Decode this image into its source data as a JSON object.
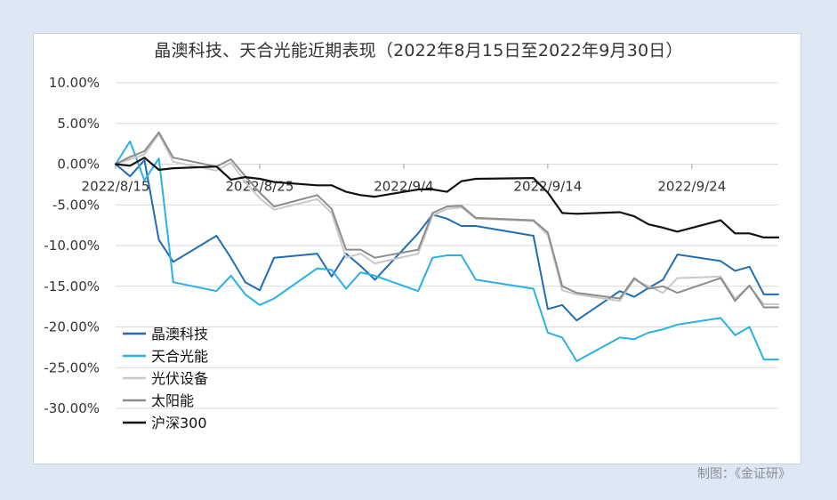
{
  "credit": "制图：《金证研》",
  "chart_data": {
    "type": "line",
    "title": "晶澳科技、天合光能近期表现（2022年8月15日至2022年9月30日）",
    "ylim": [
      -30,
      10
    ],
    "yticks": [
      10,
      5,
      0,
      -5,
      -10,
      -15,
      -20,
      -25,
      -30
    ],
    "ytick_labels": [
      "10.00%",
      "5.00%",
      "0.00%",
      "-5.00%",
      "-10.00%",
      "-15.00%",
      "-20.00%",
      "-25.00%",
      "-30.00%"
    ],
    "x": [
      "2022-08-15",
      "2022-08-16",
      "2022-08-17",
      "2022-08-18",
      "2022-08-19",
      "2022-08-22",
      "2022-08-23",
      "2022-08-24",
      "2022-08-25",
      "2022-08-26",
      "2022-08-29",
      "2022-08-30",
      "2022-08-31",
      "2022-09-01",
      "2022-09-02",
      "2022-09-05",
      "2022-09-06",
      "2022-09-07",
      "2022-09-08",
      "2022-09-09",
      "2022-09-13",
      "2022-09-14",
      "2022-09-15",
      "2022-09-16",
      "2022-09-19",
      "2022-09-20",
      "2022-09-21",
      "2022-09-22",
      "2022-09-23",
      "2022-09-26",
      "2022-09-27",
      "2022-09-28",
      "2022-09-29",
      "2022-09-30"
    ],
    "xtick_labels": [
      {
        "date": "2022-08-15",
        "label": "2022/8/15"
      },
      {
        "date": "2022-08-25",
        "label": "2022/8/25"
      },
      {
        "date": "2022-09-04",
        "label": "2022/9/4"
      },
      {
        "date": "2022-09-14",
        "label": "2022/9/14"
      },
      {
        "date": "2022-09-24",
        "label": "2022/9/24"
      }
    ],
    "grid": true,
    "legend_position": "bottom-left",
    "series": [
      {
        "name": "晶澳科技",
        "color": "#1f6db5",
        "values": [
          0,
          -1.5,
          0.5,
          -9.3,
          -12,
          -8.8,
          -11.5,
          -14.5,
          -15.5,
          -11.5,
          -11,
          -13.8,
          -11,
          -12.5,
          -14.2,
          -8.5,
          -6.2,
          -6.7,
          -7.6,
          -7.6,
          -8.8,
          -17.8,
          -17.3,
          -19.2,
          -15.6,
          -16.3,
          -15.2,
          -14.2,
          -11.1,
          -11.9,
          -13.1,
          -12.6,
          -16.0,
          -16.0
        ]
      },
      {
        "name": "天合光能",
        "color": "#29b1e6",
        "values": [
          0,
          2.8,
          -2.0,
          0.7,
          -14.5,
          -15.6,
          -13.7,
          -16.0,
          -17.3,
          -16.5,
          -12.8,
          -13.0,
          -15.3,
          -13.3,
          -13.7,
          -15.6,
          -11.5,
          -11.2,
          -11.2,
          -14.2,
          -15.3,
          -20.7,
          -21.3,
          -24.2,
          -21.3,
          -21.5,
          -20.7,
          -20.3,
          -19.7,
          -18.9,
          -21.0,
          -20.0,
          -24.0,
          -24.0
        ]
      },
      {
        "name": "光伏设备",
        "color": "#c8c8c8",
        "values": [
          0,
          0.6,
          1.2,
          3.7,
          0.3,
          -0.8,
          0.2,
          -2.2,
          -4.2,
          -5.6,
          -4.3,
          -6.0,
          -11.5,
          -11.0,
          -12.2,
          -11.0,
          -6.3,
          -5.5,
          -5.3,
          -6.7,
          -7.0,
          -8.7,
          -15.5,
          -16.0,
          -16.8,
          -14.2,
          -15.0,
          -15.8,
          -14.0,
          -13.8,
          -16.5,
          -15.0,
          -17.2,
          -17.2
        ]
      },
      {
        "name": "太阳能",
        "color": "#8c8c8c",
        "values": [
          0,
          0.9,
          1.6,
          3.9,
          0.8,
          -0.3,
          0.6,
          -1.5,
          -3.5,
          -5.2,
          -3.8,
          -5.5,
          -10.5,
          -10.5,
          -11.5,
          -10.5,
          -6.0,
          -5.2,
          -5.1,
          -6.6,
          -6.9,
          -8.4,
          -15.0,
          -15.8,
          -16.5,
          -14.0,
          -15.3,
          -15.0,
          -15.8,
          -14.0,
          -16.8,
          -14.9,
          -17.6,
          -17.6
        ]
      },
      {
        "name": "沪深300",
        "color": "#111111",
        "values": [
          0,
          -0.2,
          0.8,
          -0.7,
          -0.5,
          -0.3,
          -1.9,
          -1.6,
          -1.8,
          -2.2,
          -2.6,
          -2.6,
          -3.4,
          -3.8,
          -4.0,
          -3.1,
          -3.1,
          -3.4,
          -2.1,
          -1.8,
          -1.7,
          -3.5,
          -6.0,
          -6.1,
          -5.9,
          -6.4,
          -7.4,
          -7.8,
          -8.3,
          -6.9,
          -8.5,
          -8.5,
          -9.0,
          -9.0
        ]
      }
    ]
  }
}
